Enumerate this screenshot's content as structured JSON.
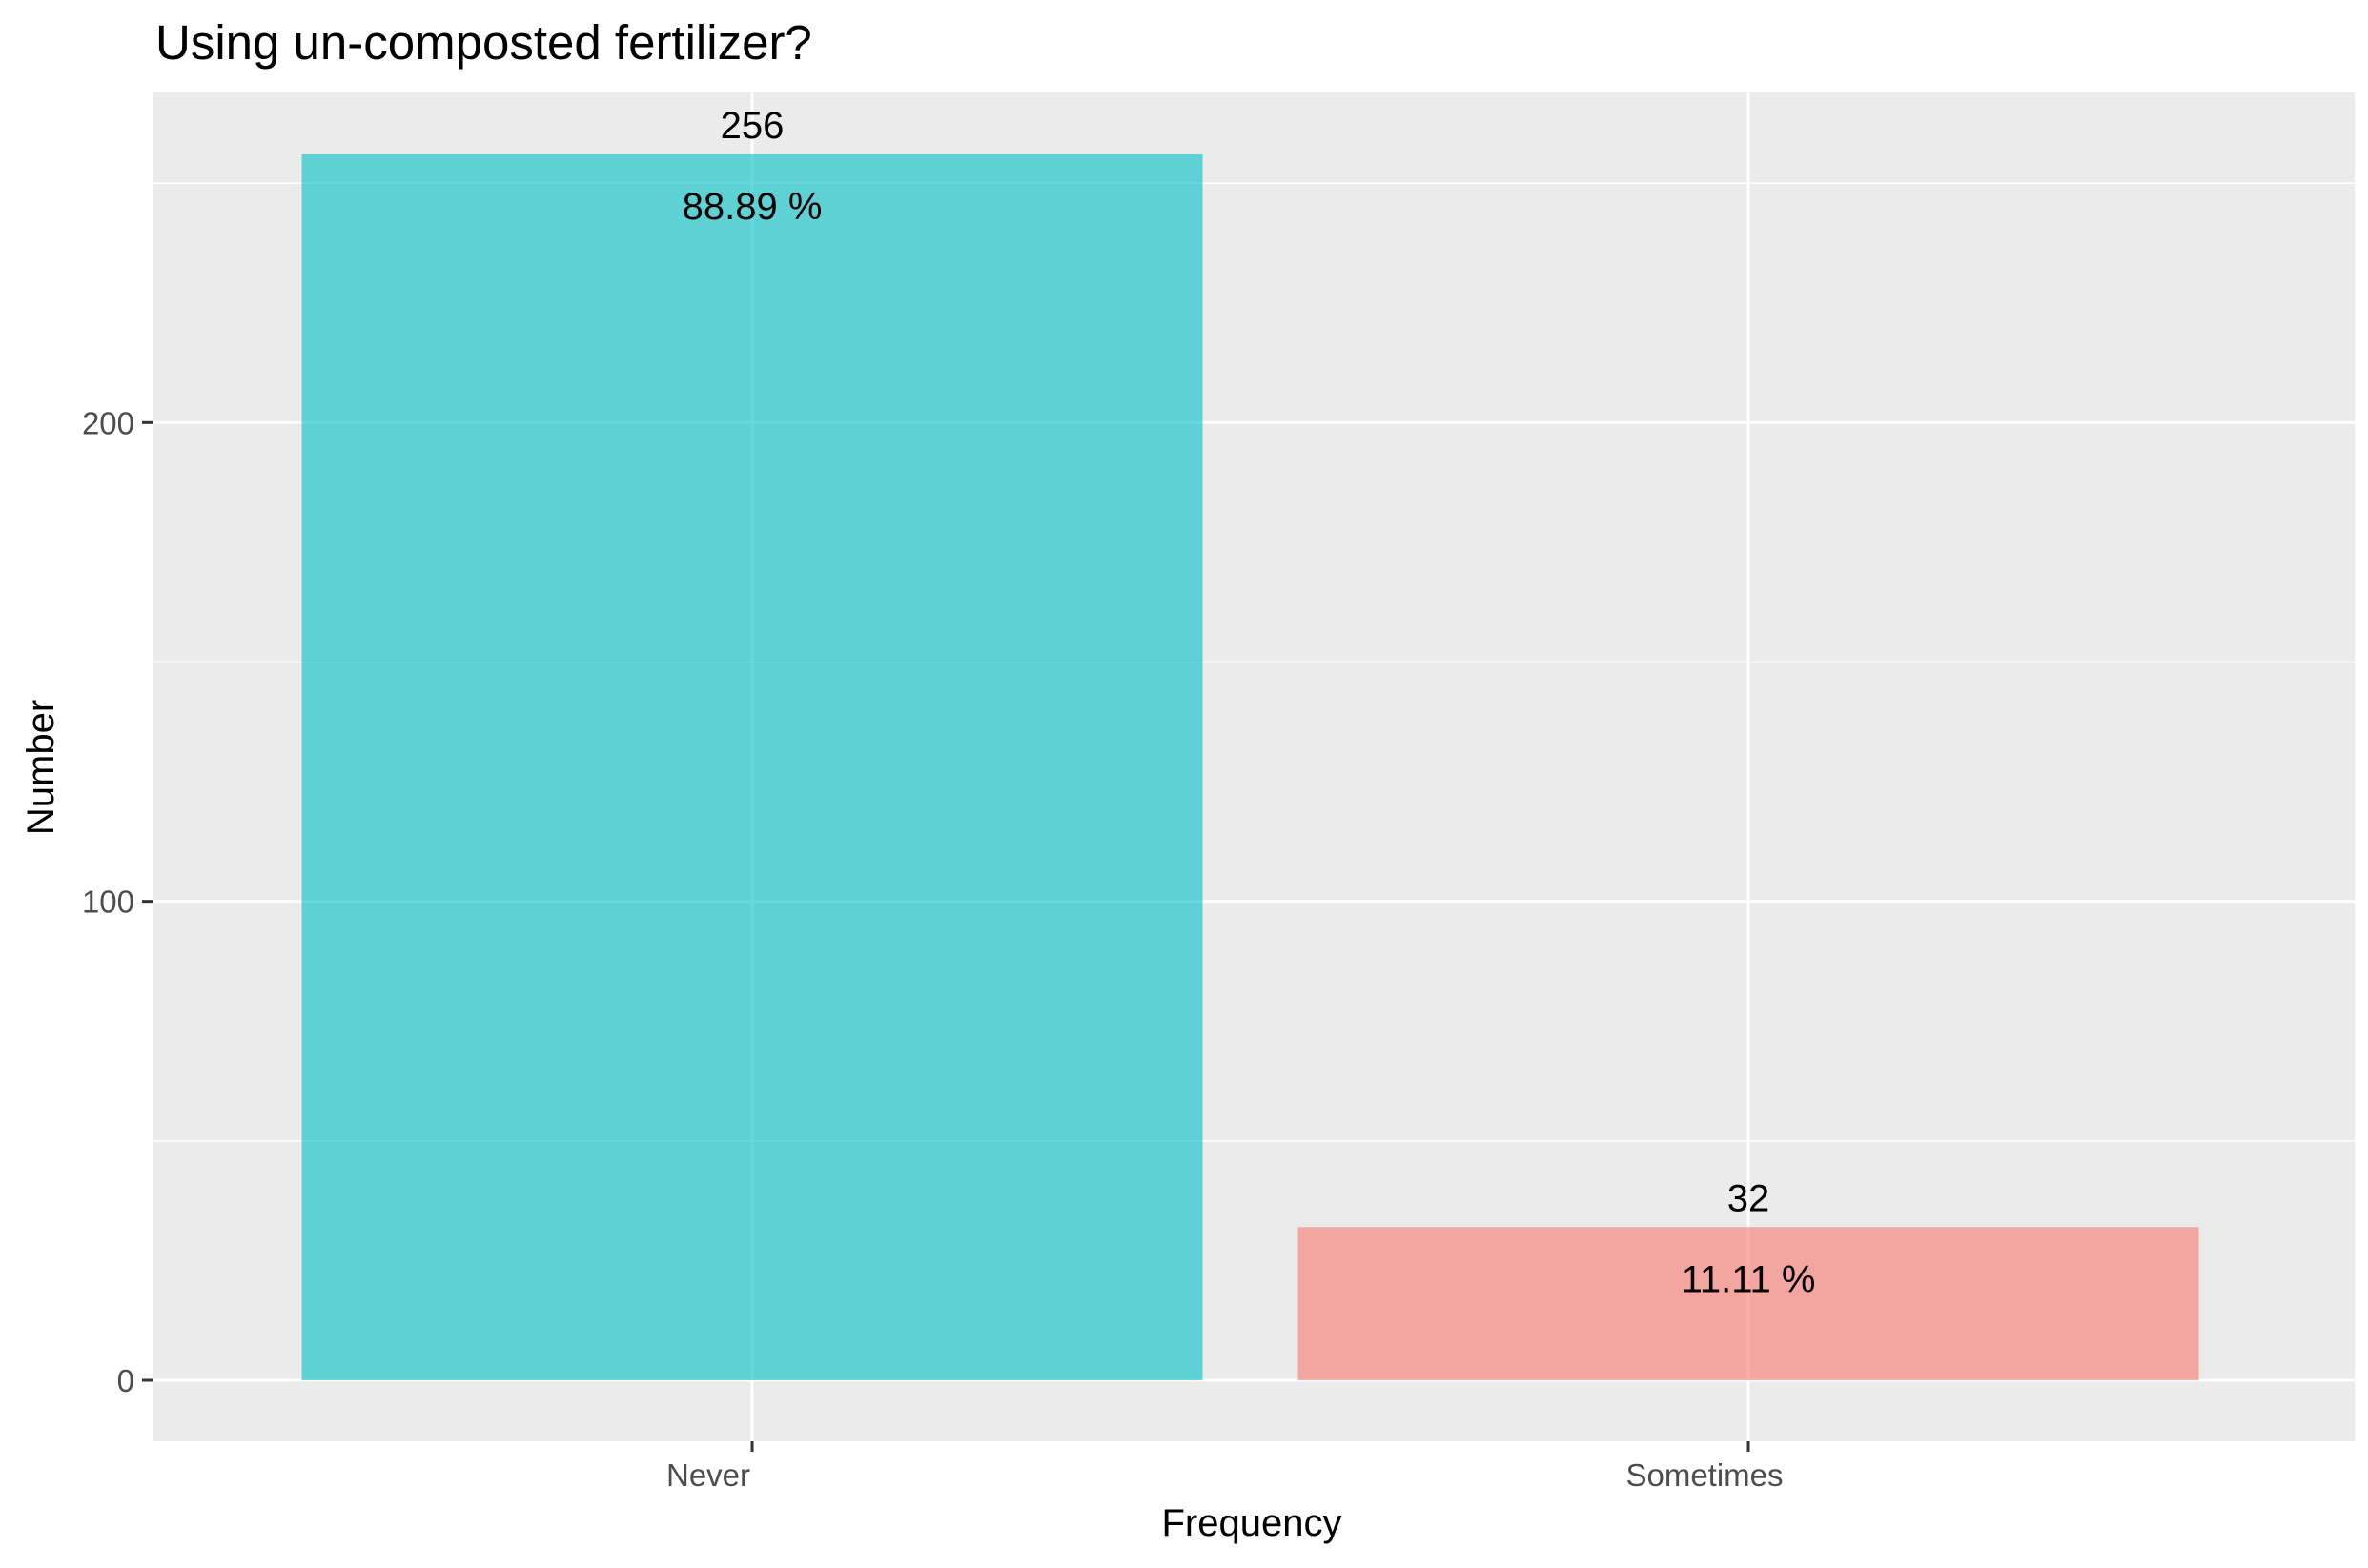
{
  "chart_data": {
    "type": "bar",
    "title": "Using un-composted fertilizer?",
    "xlabel": "Frequency",
    "ylabel": "Number",
    "categories": [
      "Never",
      "Sometimes"
    ],
    "values": [
      256,
      32
    ],
    "value_labels": [
      "256",
      "32"
    ],
    "percent_labels": [
      "88.89 %",
      "11.11 %"
    ],
    "colors": [
      "#00BFC4",
      "#F8766D"
    ],
    "bar_opacity": 0.6,
    "ylim": [
      -12,
      270
    ],
    "yticks": [
      0,
      100,
      200
    ],
    "ytick_labels": [
      "0",
      "100",
      "200"
    ],
    "grid": true,
    "legend": "none",
    "panel_background": "#EBEBEB",
    "grid_color": "#FFFFFF"
  }
}
